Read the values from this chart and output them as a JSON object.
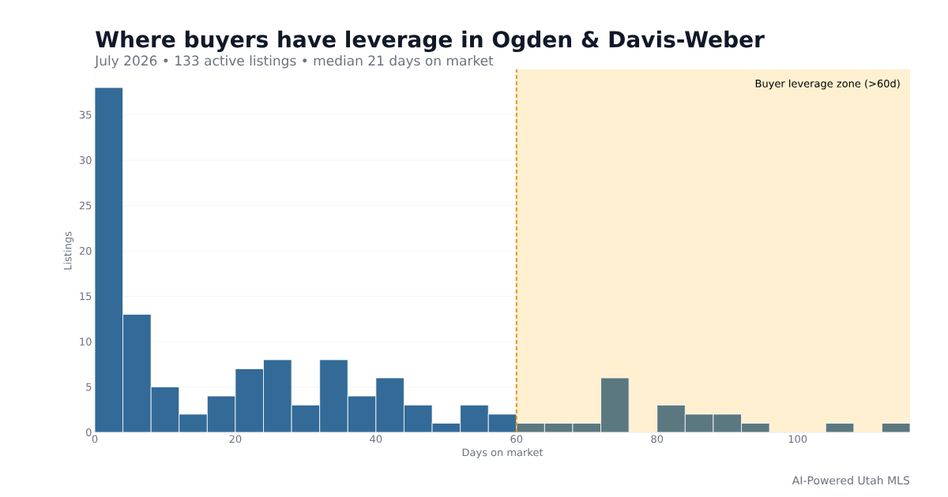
{
  "chart_data": {
    "type": "histogram",
    "title": "Where buyers have leverage in Ogden & Davis-Weber",
    "subtitle": "July 2026 • 133 active listings • median 21 days on market",
    "xlabel": "Days on market",
    "ylabel": "Listings",
    "bins": [
      0,
      4,
      8,
      12,
      16,
      20,
      24,
      28,
      32,
      36,
      40,
      44,
      48,
      52,
      56,
      60,
      64,
      68,
      72,
      76,
      80,
      84,
      88,
      92,
      96,
      100,
      104,
      108,
      112,
      116
    ],
    "values": [
      38,
      13,
      5,
      2,
      4,
      7,
      8,
      3,
      8,
      4,
      6,
      3,
      1,
      3,
      2,
      1,
      1,
      1,
      6,
      0,
      3,
      2,
      2,
      1,
      0,
      0,
      1,
      0,
      1
    ],
    "colors": [
      "#336a97",
      "#336a97",
      "#336a97",
      "#336a97",
      "#336a97",
      "#336a97",
      "#336a97",
      "#336a97",
      "#336a97",
      "#336a97",
      "#336a97",
      "#336a97",
      "#336a97",
      "#336a97",
      "#336a97",
      "#5b7880",
      "#5b7880",
      "#5b7880",
      "#5b7880",
      "#5b7880",
      "#5b7880",
      "#5b7880",
      "#5b7880",
      "#5b7880",
      "#5b7880",
      "#5b7880",
      "#5b7880",
      "#5b7880",
      "#5b7880"
    ],
    "xlim": [
      0,
      116
    ],
    "ylim": [
      0,
      40
    ],
    "xticks": [
      0,
      20,
      40,
      60,
      80,
      100
    ],
    "yticks": [
      0,
      5,
      10,
      15,
      20,
      25,
      30,
      35
    ],
    "bands": [
      {
        "axis": "x",
        "from": 60,
        "to": 116,
        "label": "Buyer leverage zone (>60d)",
        "color": "#fef0d0"
      }
    ],
    "ref_lines": [
      {
        "axis": "x",
        "value": 60,
        "color": "#e8961e",
        "line_style": "dashed"
      }
    ],
    "grid": "y",
    "legend": "top right",
    "annotations": [
      "AI-Powered Utah MLS"
    ]
  }
}
